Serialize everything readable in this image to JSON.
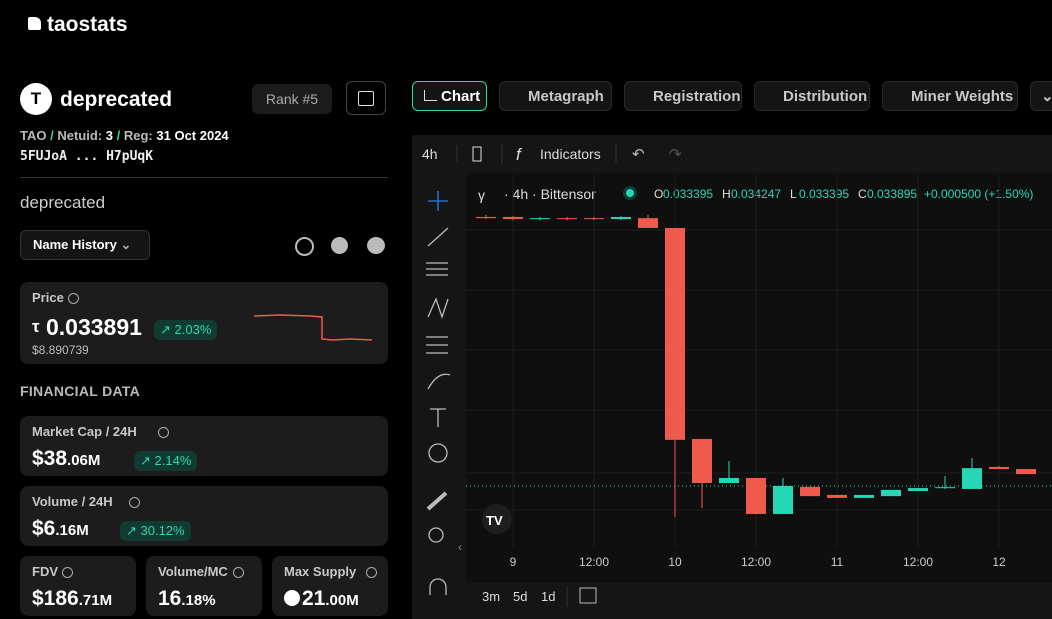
{
  "header": {
    "logo": "taostats"
  },
  "subnet": {
    "name": "deprecated",
    "rank": "Rank #5",
    "meta": [
      "TAO",
      "/",
      "Netuid:",
      "3",
      "/",
      "Reg:",
      "31 Oct 2024"
    ],
    "address": "5FUJoA ... H7pUqK",
    "description": "deprecated",
    "name_history": "Name History"
  },
  "price": {
    "label": "Price",
    "symbol": "τ",
    "value": "0.033891",
    "change": "2.03%",
    "usd": "$8.890739"
  },
  "financial": {
    "title": "FINANCIAL DATA",
    "cards": [
      {
        "label": "Market Cap / 24H",
        "main": "$38",
        "frac": ".06M",
        "change": "2.14%"
      },
      {
        "label": "Volume / 24H",
        "main": "$6",
        "frac": ".16M",
        "change": "30.12%"
      },
      {
        "label": "FDV",
        "main": "$186",
        "frac": ".71M"
      },
      {
        "label": "Volume/MC",
        "main": "16",
        "frac": ".18%"
      },
      {
        "label": "Max Supply",
        "main": "21",
        "frac": ".00M"
      }
    ]
  },
  "tabs": [
    "Chart",
    "Metagraph",
    "Registration",
    "Distribution",
    "Miner Weights"
  ],
  "toolbar": {
    "interval": "4h",
    "indicators": "Indicators"
  },
  "chart": {
    "symbol": "γ",
    "desc": "· 4h · Bittensor",
    "ohlc": [
      {
        "k": "O",
        "v": "0.033395"
      },
      {
        "k": "H",
        "v": "0.034247"
      },
      {
        "k": "L",
        "v": "0.033395"
      },
      {
        "k": "C",
        "v": "0.033895"
      }
    ],
    "change": "+0.000500 (+1.50%)",
    "type": "candlestick",
    "up_color": "#26d7b5",
    "down_color": "#ef5a4d",
    "ylim": [
      0.0314,
      0.0439
    ],
    "xticks": [
      "9",
      "12:00",
      "10",
      "12:00",
      "11",
      "12:00",
      "12"
    ],
    "candles": [
      {
        "o": 0.04249,
        "h": 0.04256,
        "l": 0.04242,
        "c": 0.04245
      },
      {
        "o": 0.04249,
        "h": 0.04252,
        "l": 0.04238,
        "c": 0.04242
      },
      {
        "o": 0.04242,
        "h": 0.04249,
        "l": 0.04238,
        "c": 0.04245
      },
      {
        "o": 0.04245,
        "h": 0.04249,
        "l": 0.04238,
        "c": 0.04242
      },
      {
        "o": 0.04245,
        "h": 0.04249,
        "l": 0.04238,
        "c": 0.04242
      },
      {
        "o": 0.04242,
        "h": 0.04252,
        "l": 0.04238,
        "c": 0.04249
      },
      {
        "o": 0.04245,
        "h": 0.04256,
        "l": 0.04212,
        "c": 0.04212
      },
      {
        "o": 0.04212,
        "h": 0.04212,
        "l": 0.03241,
        "c": 0.035
      },
      {
        "o": 0.03503,
        "h": 0.03503,
        "l": 0.03271,
        "c": 0.03355
      },
      {
        "o": 0.03355,
        "h": 0.03429,
        "l": 0.03355,
        "c": 0.03372
      },
      {
        "o": 0.03372,
        "h": 0.03372,
        "l": 0.03251,
        "c": 0.03251
      },
      {
        "o": 0.03251,
        "h": 0.03372,
        "l": 0.03251,
        "c": 0.03345
      },
      {
        "o": 0.03342,
        "h": 0.03342,
        "l": 0.03311,
        "c": 0.03311
      },
      {
        "o": 0.03315,
        "h": 0.03315,
        "l": 0.03305,
        "c": 0.03305
      },
      {
        "o": 0.03305,
        "h": 0.03315,
        "l": 0.03305,
        "c": 0.03315
      },
      {
        "o": 0.03311,
        "h": 0.03332,
        "l": 0.03311,
        "c": 0.03332
      },
      {
        "o": 0.03328,
        "h": 0.03338,
        "l": 0.03328,
        "c": 0.03338
      },
      {
        "o": 0.03338,
        "h": 0.03379,
        "l": 0.03335,
        "c": 0.03341
      },
      {
        "o": 0.03335,
        "h": 0.03439,
        "l": 0.03335,
        "c": 0.03405
      },
      {
        "o": 0.03409,
        "h": 0.03412,
        "l": 0.03402,
        "c": 0.03402
      },
      {
        "o": 0.03402,
        "h": 0.03402,
        "l": 0.03385,
        "c": 0.03385
      }
    ]
  },
  "ranges": [
    "3m",
    "5d",
    "1d"
  ]
}
